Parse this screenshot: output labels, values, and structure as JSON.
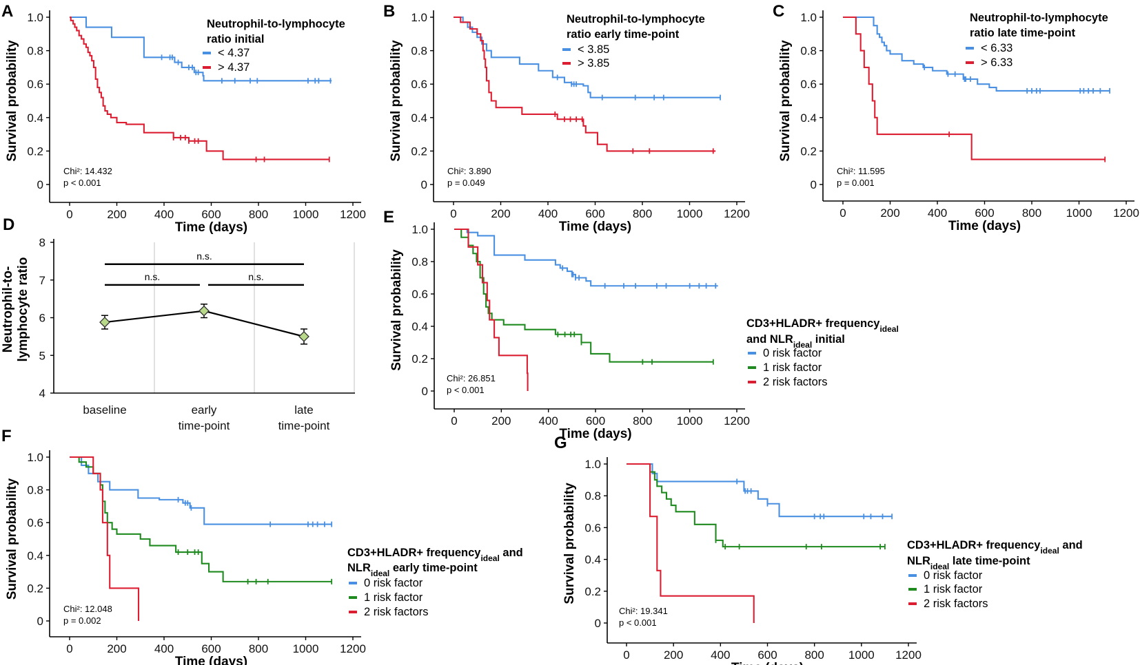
{
  "colors": {
    "blue": "#4a90e2",
    "red": "#dc1e32",
    "green": "#1f8a1f",
    "marker_fill": "#b8d98a"
  },
  "chart_data": [
    {
      "id": "A",
      "type": "line",
      "panel_label": "A",
      "xlabel": "Time (days)",
      "ylabel": "Survival probability",
      "xlim": [
        0,
        1200
      ],
      "ylim": [
        0,
        1
      ],
      "xticks": [
        "0",
        "200",
        "400",
        "600",
        "800",
        "1000",
        "1200"
      ],
      "yticks": [
        "0",
        "0.2",
        "0.4",
        "0.6",
        "0.8",
        "1.0"
      ],
      "legend_title_lines": [
        "Neutrophil-to-lymphocyte",
        "ratio initial"
      ],
      "stats": {
        "chi2": "Chi²:  14.432",
        "p": "p < 0.001"
      },
      "series": [
        {
          "name": "< 4.37",
          "color": "#4a90e2",
          "x": [
            0,
            55,
            70,
            165,
            178,
            315,
            445,
            475,
            528,
            560,
            565,
            568,
            1110
          ],
          "y": [
            1.0,
            1.0,
            0.94,
            0.94,
            0.88,
            0.76,
            0.73,
            0.7,
            0.67,
            0.67,
            0.65,
            0.62,
            0.62
          ],
          "censor_x": [
            390,
            425,
            435,
            460,
            505,
            520,
            535,
            545,
            645,
            700,
            765,
            795,
            1010,
            1040,
            1055,
            1105
          ]
        },
        {
          "name": "> 4.37",
          "color": "#dc1e32",
          "x": [
            0,
            5,
            15,
            22,
            30,
            40,
            50,
            60,
            70,
            78,
            86,
            94,
            102,
            110,
            118,
            126,
            134,
            142,
            150,
            160,
            175,
            200,
            240,
            315,
            440,
            505,
            580,
            650,
            1100
          ],
          "y": [
            1.0,
            0.98,
            0.96,
            0.94,
            0.92,
            0.89,
            0.87,
            0.84,
            0.82,
            0.79,
            0.77,
            0.74,
            0.7,
            0.63,
            0.58,
            0.55,
            0.52,
            0.47,
            0.44,
            0.42,
            0.4,
            0.37,
            0.36,
            0.31,
            0.28,
            0.26,
            0.2,
            0.15,
            0.15
          ],
          "censor_x": [
            440,
            470,
            490,
            505,
            530,
            545,
            790,
            825,
            1100
          ]
        }
      ]
    },
    {
      "id": "B",
      "type": "line",
      "panel_label": "B",
      "xlabel": "Time (days)",
      "ylabel": "Survival probability",
      "xlim": [
        0,
        1200
      ],
      "ylim": [
        0,
        1
      ],
      "xticks": [
        "0",
        "200",
        "400",
        "600",
        "800",
        "1000",
        "1200"
      ],
      "yticks": [
        "0",
        "0.2",
        "0.4",
        "0.6",
        "0.8",
        "1.0"
      ],
      "legend_title_lines": [
        "Neutrophil-to-lymphocyte",
        "ratio early time-point"
      ],
      "stats": {
        "chi2": "Chi²:  3.890",
        "p": "p = 0.049"
      },
      "series": [
        {
          "name": "< 3.85",
          "color": "#4a90e2",
          "x": [
            0,
            40,
            60,
            80,
            100,
            120,
            140,
            160,
            280,
            360,
            420,
            470,
            500,
            550,
            570,
            580,
            630,
            1130
          ],
          "y": [
            1.0,
            0.97,
            0.94,
            0.91,
            0.88,
            0.84,
            0.8,
            0.76,
            0.72,
            0.68,
            0.64,
            0.61,
            0.6,
            0.59,
            0.55,
            0.52,
            0.52,
            0.52
          ],
          "censor_x": [
            440,
            500,
            510,
            520,
            630,
            770,
            850,
            890,
            1130
          ]
        },
        {
          "name": "> 3.85",
          "color": "#dc1e32",
          "x": [
            0,
            30,
            70,
            100,
            115,
            125,
            130,
            135,
            140,
            150,
            160,
            180,
            220,
            290,
            420,
            440,
            550,
            560,
            610,
            650,
            1110
          ],
          "y": [
            1.0,
            0.97,
            0.93,
            0.9,
            0.86,
            0.8,
            0.75,
            0.7,
            0.62,
            0.55,
            0.5,
            0.46,
            0.46,
            0.42,
            0.42,
            0.39,
            0.35,
            0.31,
            0.24,
            0.2,
            0.2
          ],
          "censor_x": [
            430,
            470,
            495,
            520,
            545,
            760,
            830,
            1100
          ]
        }
      ]
    },
    {
      "id": "C",
      "type": "line",
      "panel_label": "C",
      "xlabel": "Time (days)",
      "ylabel": "Survival probability",
      "xlim": [
        0,
        1200
      ],
      "ylim": [
        0,
        1
      ],
      "xticks": [
        "0",
        "200",
        "400",
        "600",
        "800",
        "1000",
        "1200"
      ],
      "yticks": [
        "0",
        "0.2",
        "0.4",
        "0.6",
        "0.8",
        "1.0"
      ],
      "legend_title_lines": [
        "Neutrophil-to-lymphocyte",
        "ratio late time-point"
      ],
      "stats": {
        "chi2": "Chi²:  11.595",
        "p": "p = 0.001"
      },
      "series": [
        {
          "name": "< 6.33",
          "color": "#4a90e2",
          "x": [
            0,
            130,
            145,
            155,
            165,
            175,
            185,
            200,
            250,
            300,
            340,
            380,
            440,
            510,
            570,
            620,
            650,
            1130
          ],
          "y": [
            1.0,
            0.95,
            0.9,
            0.88,
            0.85,
            0.83,
            0.8,
            0.78,
            0.74,
            0.72,
            0.7,
            0.68,
            0.66,
            0.63,
            0.6,
            0.58,
            0.56,
            0.56
          ],
          "censor_x": [
            345,
            445,
            475,
            515,
            520,
            540,
            780,
            800,
            820,
            835,
            1005,
            1020,
            1040,
            1060,
            1090,
            1130
          ]
        },
        {
          "name": "> 6.33",
          "color": "#dc1e32",
          "x": [
            0,
            55,
            75,
            90,
            110,
            125,
            135,
            145,
            545,
            1110
          ],
          "y": [
            1.0,
            0.9,
            0.8,
            0.7,
            0.6,
            0.5,
            0.4,
            0.3,
            0.15,
            0.15
          ],
          "censor_x": [
            450,
            1110
          ]
        }
      ]
    },
    {
      "id": "D",
      "type": "line",
      "panel_label": "D",
      "categories": [
        "baseline",
        "early time-point",
        "late time-point"
      ],
      "category_lines": [
        [
          "baseline"
        ],
        [
          "early",
          "time-point"
        ],
        [
          "late",
          "time-point"
        ]
      ],
      "ylabel_lines": [
        "Neutrophil-to-",
        "lymphocyte  ratio"
      ],
      "ylim": [
        4,
        8
      ],
      "yticks": [
        "4",
        "5",
        "6",
        "7",
        "8"
      ],
      "values": [
        5.88,
        6.18,
        5.5
      ],
      "errors": [
        0.18,
        0.18,
        0.2
      ],
      "significance": [
        {
          "label": "n.s.",
          "from": 0,
          "to": 2,
          "y": 7.42
        },
        {
          "label": "n.s.",
          "from": 0,
          "to": 1,
          "y": 6.87
        },
        {
          "label": "n.s.",
          "from": 1,
          "to": 2,
          "y": 6.87
        }
      ]
    },
    {
      "id": "E",
      "type": "line",
      "panel_label": "E",
      "xlabel": "Time (days)",
      "ylabel": "Survival probability",
      "xlim": [
        0,
        1200
      ],
      "ylim": [
        0,
        1
      ],
      "xticks": [
        "0",
        "200",
        "400",
        "600",
        "800",
        "1000",
        "1200"
      ],
      "yticks": [
        "0",
        "0.2",
        "0.4",
        "0.6",
        "0.8",
        "1.0"
      ],
      "legend_title_parts": [
        [
          {
            "t": "CD3+HLADR+  frequency"
          },
          {
            "t": "ideal",
            "sub": true
          }
        ],
        [
          {
            "t": "and NLR"
          },
          {
            "t": "ideal",
            "sub": true
          },
          {
            "t": " initial"
          }
        ]
      ],
      "stats": {
        "chi2": "Chi²:  26.851",
        "p": "p < 0.001"
      },
      "series": [
        {
          "name": "0 risk factor",
          "color": "#4a90e2",
          "x": [
            0,
            55,
            100,
            170,
            300,
            430,
            450,
            480,
            500,
            515,
            560,
            580,
            1120
          ],
          "y": [
            1.0,
            0.98,
            0.96,
            0.84,
            0.81,
            0.78,
            0.76,
            0.74,
            0.72,
            0.7,
            0.68,
            0.65,
            0.65
          ],
          "censor_x": [
            460,
            500,
            505,
            515,
            530,
            640,
            720,
            770,
            860,
            900,
            1000,
            1040,
            1070,
            1110
          ]
        },
        {
          "name": "1 risk factor",
          "color": "#1f8a1f",
          "x": [
            0,
            30,
            60,
            80,
            95,
            110,
            125,
            135,
            145,
            160,
            210,
            300,
            430,
            540,
            580,
            660,
            1100
          ],
          "y": [
            1.0,
            0.95,
            0.9,
            0.85,
            0.8,
            0.7,
            0.6,
            0.52,
            0.48,
            0.44,
            0.41,
            0.38,
            0.35,
            0.3,
            0.23,
            0.18,
            0.18
          ],
          "censor_x": [
            440,
            470,
            495,
            510,
            540,
            800,
            840,
            1100
          ]
        },
        {
          "name": "2 risk factors",
          "color": "#dc1e32",
          "x": [
            0,
            60,
            100,
            120,
            140,
            150,
            170,
            190,
            310,
            312
          ],
          "y": [
            1.0,
            0.89,
            0.78,
            0.67,
            0.56,
            0.44,
            0.33,
            0.22,
            0.11,
            0.0
          ],
          "censor_x": []
        }
      ]
    },
    {
      "id": "F",
      "type": "line",
      "panel_label": "F",
      "xlabel": "Time (days)",
      "ylabel": "Survival probability",
      "xlim": [
        0,
        1200
      ],
      "ylim": [
        0,
        1
      ],
      "xticks": [
        "0",
        "200",
        "400",
        "600",
        "800",
        "1000",
        "1200"
      ],
      "yticks": [
        "0",
        "0.2",
        "0.4",
        "0.6",
        "0.8",
        "1.0"
      ],
      "legend_title_parts": [
        [
          {
            "t": "CD3+HLADR+  frequency"
          },
          {
            "t": "ideal",
            "sub": true
          },
          {
            "t": " and"
          }
        ],
        [
          {
            "t": "NLR"
          },
          {
            "t": "ideal",
            "sub": true
          },
          {
            "t": " early time-point"
          }
        ]
      ],
      "stats": {
        "chi2": "Chi²:  12.048",
        "p": "p = 0.002"
      },
      "series": [
        {
          "name": "0 risk factor",
          "color": "#4a90e2",
          "x": [
            0,
            50,
            80,
            120,
            170,
            290,
            380,
            480,
            510,
            570,
            1110
          ],
          "y": [
            1.0,
            0.95,
            0.9,
            0.85,
            0.8,
            0.75,
            0.74,
            0.72,
            0.69,
            0.59,
            0.59
          ],
          "censor_x": [
            460,
            490,
            500,
            515,
            850,
            1010,
            1030,
            1050,
            1080,
            1110
          ]
        },
        {
          "name": "1 risk factor",
          "color": "#1f8a1f",
          "x": [
            0,
            40,
            70,
            100,
            130,
            140,
            150,
            160,
            180,
            200,
            300,
            340,
            450,
            560,
            590,
            650,
            1110
          ],
          "y": [
            1.0,
            0.97,
            0.94,
            0.9,
            0.83,
            0.73,
            0.66,
            0.6,
            0.56,
            0.53,
            0.5,
            0.46,
            0.42,
            0.35,
            0.3,
            0.24,
            0.24
          ],
          "censor_x": [
            460,
            500,
            530,
            545,
            755,
            790,
            840,
            1110
          ]
        },
        {
          "name": "2 risk factors",
          "color": "#dc1e32",
          "x": [
            0,
            80,
            100,
            130,
            140,
            160,
            170,
            290,
            292
          ],
          "y": [
            1.0,
            1.0,
            0.9,
            0.8,
            0.6,
            0.4,
            0.2,
            0.2,
            0.0
          ],
          "censor_x": []
        }
      ]
    },
    {
      "id": "G",
      "type": "line",
      "panel_label": "G",
      "xlabel": "Time (days)",
      "ylabel": "Survival probability",
      "xlim": [
        0,
        1200
      ],
      "ylim": [
        0,
        1
      ],
      "xticks": [
        "0",
        "200",
        "400",
        "600",
        "800",
        "1000",
        "1200"
      ],
      "yticks": [
        "0",
        "0.2",
        "0.4",
        "0.6",
        "0.8",
        "1.0"
      ],
      "legend_title_parts": [
        [
          {
            "t": "CD3+HLADR+  frequency"
          },
          {
            "t": "ideal",
            "sub": true
          },
          {
            "t": " and"
          }
        ],
        [
          {
            "t": "NLR"
          },
          {
            "t": "ideal",
            "sub": true
          },
          {
            "t": " late time-point"
          }
        ]
      ],
      "stats": {
        "chi2": "Chi²:  19.341",
        "p": "p < 0.001"
      },
      "series": [
        {
          "name": "0 risk factor",
          "color": "#4a90e2",
          "x": [
            0,
            90,
            110,
            130,
            470,
            500,
            560,
            600,
            650,
            1130
          ],
          "y": [
            1.0,
            1.0,
            0.94,
            0.89,
            0.89,
            0.83,
            0.78,
            0.75,
            0.67,
            0.67
          ],
          "censor_x": [
            470,
            505,
            515,
            530,
            600,
            800,
            825,
            840,
            1010,
            1040,
            1090,
            1130
          ]
        },
        {
          "name": "1 risk factor",
          "color": "#1f8a1f",
          "x": [
            0,
            100,
            120,
            130,
            150,
            170,
            190,
            210,
            290,
            380,
            410,
            1100
          ],
          "y": [
            1.0,
            0.95,
            0.9,
            0.86,
            0.82,
            0.78,
            0.74,
            0.7,
            0.62,
            0.52,
            0.48,
            0.48
          ],
          "censor_x": [
            380,
            420,
            480,
            765,
            830,
            1080,
            1100
          ]
        },
        {
          "name": "2 risk factors",
          "color": "#dc1e32",
          "x": [
            0,
            80,
            100,
            130,
            145,
            540,
            542
          ],
          "y": [
            1.0,
            1.0,
            0.67,
            0.33,
            0.17,
            0.17,
            0.0
          ],
          "censor_x": []
        }
      ]
    }
  ]
}
